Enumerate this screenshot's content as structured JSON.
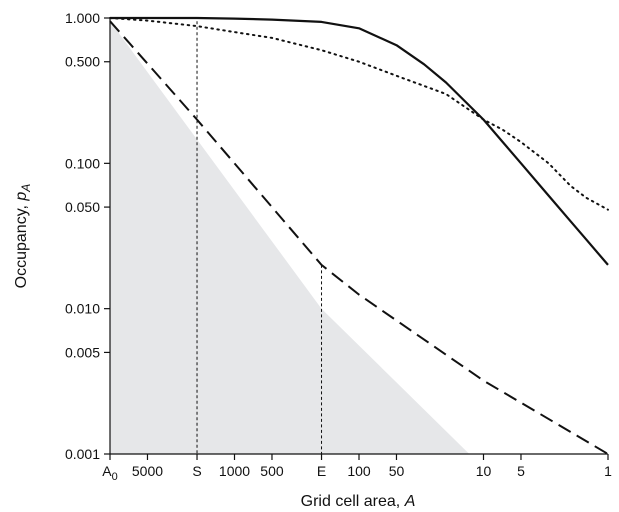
{
  "chart_data": {
    "type": "line",
    "xscale": "log",
    "yscale": "log",
    "x_axis_reversed": true,
    "xlim": [
      10000,
      1
    ],
    "ylim": [
      0.001,
      1.0
    ],
    "xlabel": "Grid cell area, A",
    "xlabel_main": "Grid cell area, ",
    "xlabel_var": "A",
    "ylabel": "Occupancy, p_A",
    "ylabel_main": "Occupancy, ",
    "ylabel_var": "p",
    "ylabel_sub": "A",
    "x_ticks": [
      {
        "value": 10000,
        "label": "A",
        "sub": "0"
      },
      {
        "value": 5000,
        "label": "5000"
      },
      {
        "value": 2000,
        "label": "S"
      },
      {
        "value": 1000,
        "label": "1000"
      },
      {
        "value": 500,
        "label": "500"
      },
      {
        "value": 200,
        "label": "E"
      },
      {
        "value": 100,
        "label": "100"
      },
      {
        "value": 50,
        "label": "50"
      },
      {
        "value": 10,
        "label": "10"
      },
      {
        "value": 5,
        "label": "5"
      },
      {
        "value": 1,
        "label": "1"
      }
    ],
    "y_ticks": [
      {
        "value": 1.0,
        "label": "1.000"
      },
      {
        "value": 0.5,
        "label": "0.500"
      },
      {
        "value": 0.1,
        "label": "0.100"
      },
      {
        "value": 0.05,
        "label": "0.050"
      },
      {
        "value": 0.01,
        "label": "0.010"
      },
      {
        "value": 0.005,
        "label": "0.005"
      },
      {
        "value": 0.001,
        "label": "0.001"
      }
    ],
    "series": [
      {
        "style": "solid",
        "points": [
          [
            10000,
            1.0
          ],
          [
            5000,
            1.0
          ],
          [
            2000,
            1.0
          ],
          [
            1000,
            0.99
          ],
          [
            500,
            0.975
          ],
          [
            200,
            0.94
          ],
          [
            100,
            0.85
          ],
          [
            50,
            0.65
          ],
          [
            30,
            0.48
          ],
          [
            20,
            0.36
          ],
          [
            10,
            0.2
          ],
          [
            7,
            0.14
          ],
          [
            5,
            0.1
          ],
          [
            3,
            0.06
          ],
          [
            2,
            0.04
          ],
          [
            1.5,
            0.03
          ],
          [
            1,
            0.02
          ]
        ]
      },
      {
        "style": "dotted",
        "points": [
          [
            10000,
            1.0
          ],
          [
            5000,
            0.96
          ],
          [
            2000,
            0.88
          ],
          [
            1000,
            0.8
          ],
          [
            500,
            0.73
          ],
          [
            200,
            0.6
          ],
          [
            100,
            0.5
          ],
          [
            50,
            0.4
          ],
          [
            20,
            0.3
          ],
          [
            10,
            0.2
          ],
          [
            7,
            0.17
          ],
          [
            5,
            0.14
          ],
          [
            3,
            0.1
          ],
          [
            2,
            0.07
          ],
          [
            1.5,
            0.058
          ],
          [
            1,
            0.048
          ]
        ]
      },
      {
        "style": "dashed",
        "points": [
          [
            10000,
            0.95
          ],
          [
            2000,
            0.2
          ],
          [
            200,
            0.02
          ],
          [
            100,
            0.0125
          ],
          [
            10,
            0.0032
          ],
          [
            1,
            0.001
          ]
        ]
      }
    ],
    "shaded_region": [
      [
        10000,
        0.001
      ],
      [
        10000,
        0.95
      ],
      [
        200,
        0.01
      ],
      [
        13,
        0.001
      ]
    ],
    "reference_lines": [
      {
        "x": 2000,
        "y_top": 0.95
      },
      {
        "x": 200,
        "y_top": 0.02
      }
    ],
    "grid": false,
    "legend": "none"
  }
}
